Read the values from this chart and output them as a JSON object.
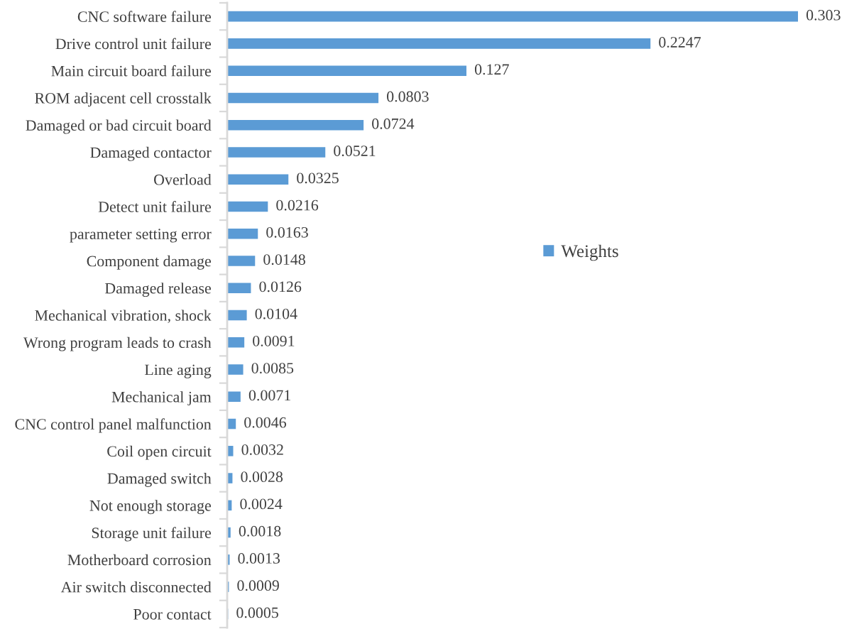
{
  "chart_data": {
    "type": "bar",
    "orientation": "horizontal",
    "categories": [
      "CNC software failure",
      "Drive control unit failure",
      "Main circuit board failure",
      "ROM adjacent cell crosstalk",
      "Damaged or bad circuit board",
      "Damaged contactor",
      "Overload",
      "Detect unit failure",
      "parameter setting error",
      "Component damage",
      "Damaged release",
      "Mechanical vibration, shock",
      "Wrong program leads to crash",
      "Line aging",
      "Mechanical jam",
      "CNC control panel malfunction",
      "Coil open circuit",
      "Damaged switch",
      "Not enough storage",
      "Storage unit failure",
      "Motherboard corrosion",
      "Air switch disconnected",
      "Poor contact"
    ],
    "series": [
      {
        "name": "Weights",
        "color": "#5b9bd5",
        "values": [
          0.303,
          0.2247,
          0.127,
          0.0803,
          0.0724,
          0.0521,
          0.0325,
          0.0216,
          0.0163,
          0.0148,
          0.0126,
          0.0104,
          0.0091,
          0.0085,
          0.0071,
          0.0046,
          0.0032,
          0.0028,
          0.0024,
          0.0018,
          0.0013,
          0.0009,
          0.0005
        ]
      }
    ],
    "data_labels": true,
    "legend": "right",
    "tick_labels": "y",
    "grid": false
  }
}
